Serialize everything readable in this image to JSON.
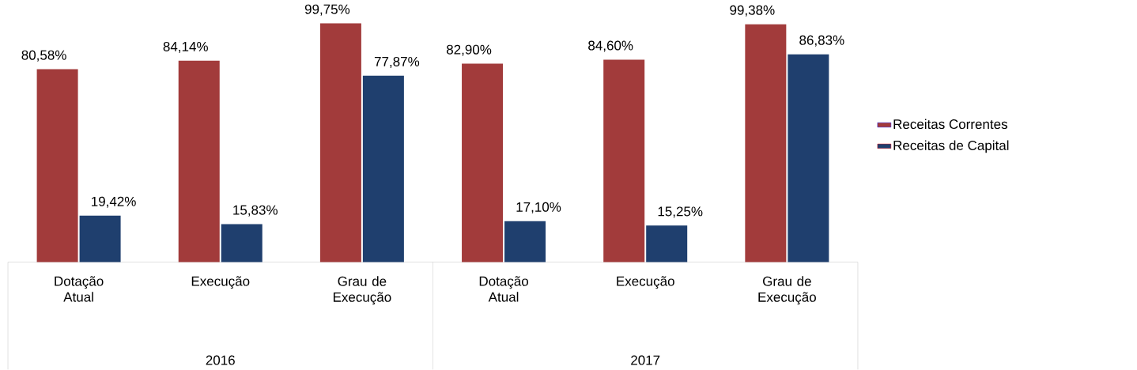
{
  "chart_data": {
    "type": "bar",
    "categories": [
      "Dotação Atual",
      "Execução",
      "Grau de Execução",
      "Dotação Atual",
      "Execução",
      "Grau de Execução"
    ],
    "series": [
      {
        "name": "Receitas Correntes",
        "color": "#a23b3b",
        "values": [
          80.58,
          84.14,
          99.75,
          82.9,
          84.6,
          99.38
        ],
        "value_labels": [
          "80,58%",
          "84,14%",
          "99,75%",
          "82,90%",
          "84,60%",
          "99,38%"
        ]
      },
      {
        "name": "Receitas de Capital",
        "color": "#1f3f6e",
        "values": [
          19.42,
          15.83,
          77.87,
          17.1,
          15.25,
          86.83
        ],
        "value_labels": [
          "19,42%",
          "15,83%",
          "77,87%",
          "17,10%",
          "15,25%",
          "86,83%"
        ]
      }
    ],
    "annotations": [
      "2016",
      "2017"
    ],
    "legend": "right"
  }
}
